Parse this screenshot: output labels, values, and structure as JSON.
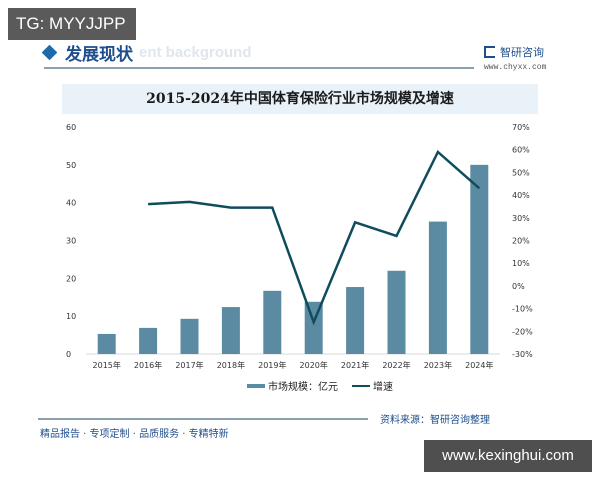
{
  "watermark_badge": "TG: MYYJJPP",
  "site_badge": "www.kexinghui.com",
  "section": {
    "title": "发展现状",
    "subtitle": "ent background"
  },
  "brand": {
    "name": "智研咨询",
    "url": "www.chyxx.com"
  },
  "footer": {
    "source": "资料来源：智研咨询整理",
    "slogan": "精品报告 · 专项定制 · 品质服务 · 专精特新"
  },
  "colors": {
    "bar": "#5b8ba3",
    "line": "#0f4c5c",
    "title_band": "#e9f2f8",
    "brand": "#1f4e8c"
  },
  "chart_data": {
    "type": "bar+line",
    "title": "2015-2024年中国体育保险行业市场规模及增速",
    "categories": [
      "2015年",
      "2016年",
      "2017年",
      "2018年",
      "2019年",
      "2020年",
      "2021年",
      "2022年",
      "2023年",
      "2024年"
    ],
    "series": [
      {
        "name": "市场规模：亿元",
        "type": "bar",
        "axis": "left",
        "values": [
          5.3,
          6.9,
          9.3,
          12.4,
          16.7,
          13.8,
          17.7,
          22.0,
          35.0,
          50.0
        ]
      },
      {
        "name": "增速",
        "type": "line",
        "axis": "right",
        "values": [
          null,
          36,
          37,
          34.5,
          34.5,
          -16,
          28,
          22,
          59,
          43
        ]
      }
    ],
    "left_axis": {
      "ylim": [
        0,
        60
      ],
      "ticks": [
        "0",
        "10",
        "20",
        "30",
        "40",
        "50",
        "60"
      ]
    },
    "right_axis": {
      "ylim": [
        -30,
        70
      ],
      "ticks": [
        "-30%",
        "-20%",
        "-10%",
        "0%",
        "10%",
        "20%",
        "30%",
        "40%",
        "50%",
        "60%",
        "70%"
      ]
    },
    "legend": {
      "position": "bottom",
      "entries": [
        "市场规模：亿元",
        "增速"
      ]
    },
    "grid": false
  }
}
